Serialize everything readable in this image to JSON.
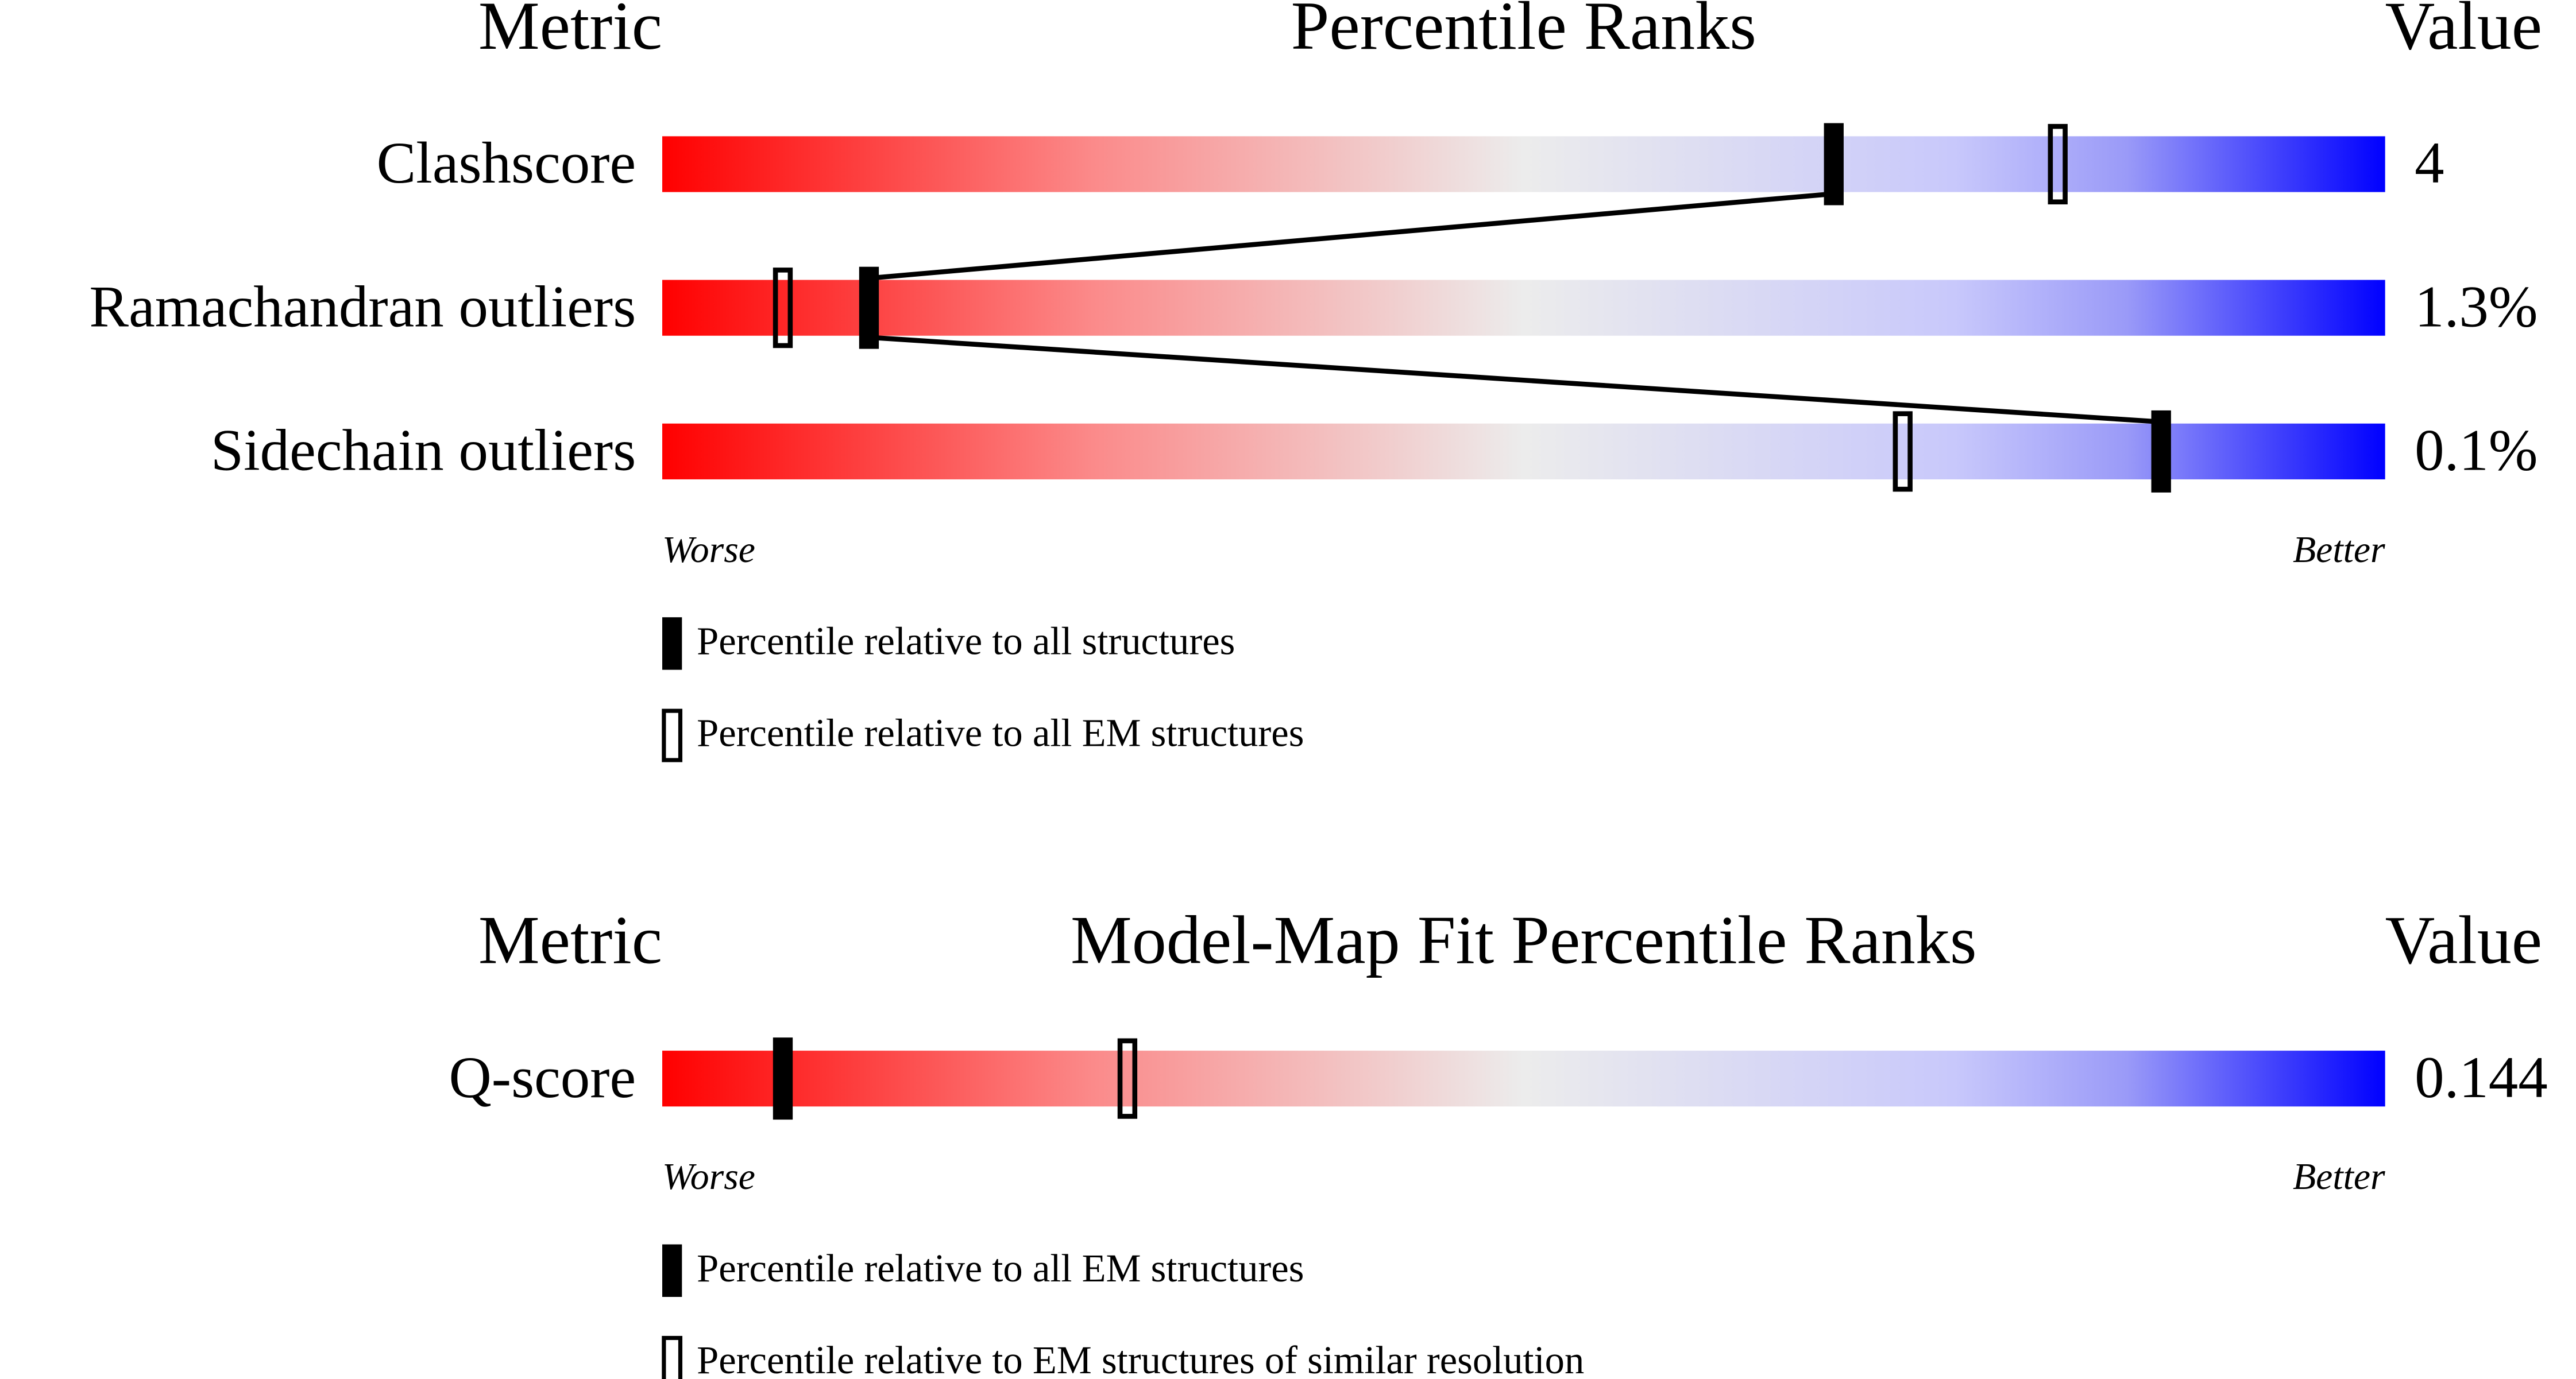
{
  "chart_data": [
    {
      "type": "percentile-slider",
      "title": "Percentile Ranks",
      "metric_header": "Metric",
      "value_header": "Value",
      "worse_label": "Worse",
      "better_label": "Better",
      "xlim": [
        0,
        100
      ],
      "categories": [
        "Clashscore",
        "Ramachandran outliers",
        "Sidechain outliers"
      ],
      "metric_values": [
        "4",
        "1.3%",
        "0.1%"
      ],
      "series": [
        {
          "name": "Percentile relative to all structures",
          "style": "filled",
          "color": "#000000",
          "values": [
            68,
            12,
            87
          ]
        },
        {
          "name": "Percentile relative to all EM structures",
          "style": "open",
          "color": "#000000",
          "values": [
            81,
            7,
            72
          ]
        }
      ]
    },
    {
      "type": "percentile-slider",
      "title": "Model-Map Fit Percentile Ranks",
      "metric_header": "Metric",
      "value_header": "Value",
      "worse_label": "Worse",
      "better_label": "Better",
      "xlim": [
        0,
        100
      ],
      "categories": [
        "Q-score"
      ],
      "metric_values": [
        "0.144"
      ],
      "series": [
        {
          "name": "Percentile relative to all EM structures",
          "style": "filled",
          "color": "#000000",
          "values": [
            7
          ]
        },
        {
          "name": "Percentile relative to EM structures of similar resolution",
          "style": "open",
          "color": "#000000",
          "values": [
            27
          ]
        }
      ]
    }
  ]
}
